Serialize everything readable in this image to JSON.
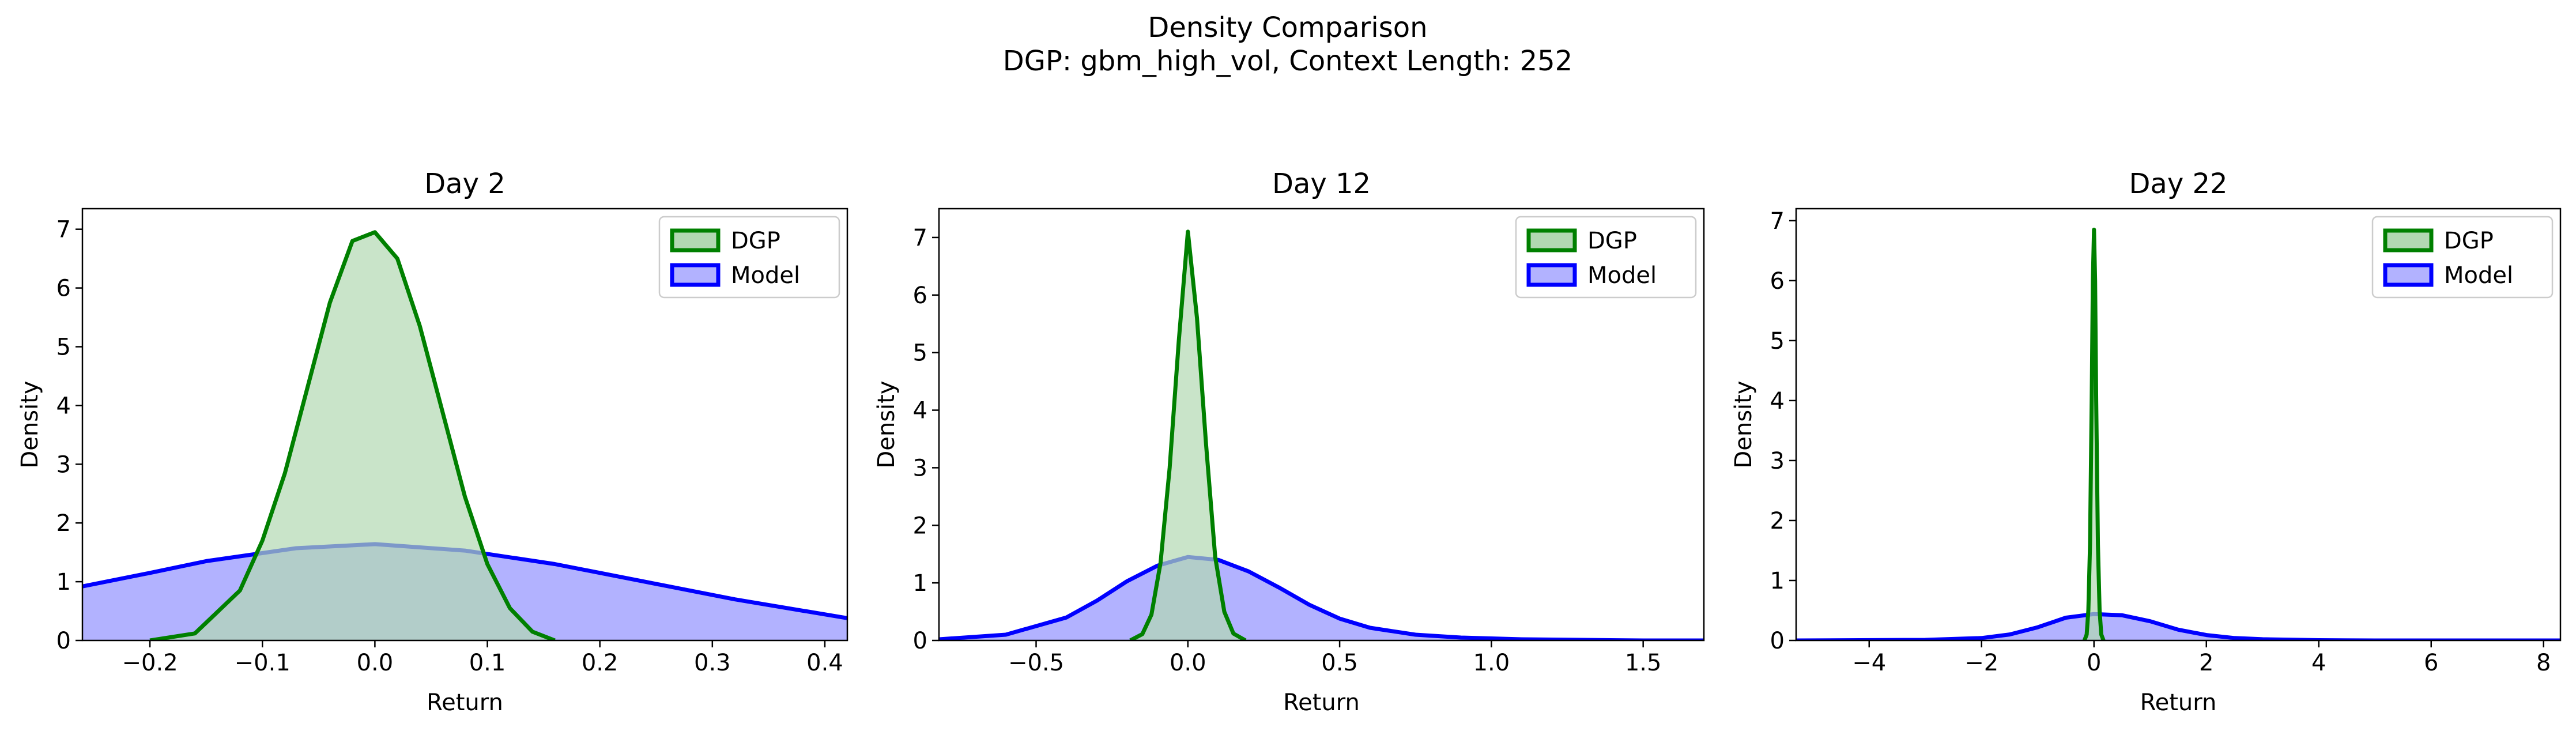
{
  "figure": {
    "title": "Density Comparison",
    "subtitle": "DGP: gbm_high_vol, Context Length: 252"
  },
  "colors": {
    "dgp_line": "#008000",
    "dgp_fill": "#b2d8b2",
    "model_line": "#0000ff",
    "model_fill": "#b2b2ff"
  },
  "chart_data": [
    {
      "type": "area",
      "title": "Day 2",
      "xlabel": "Return",
      "ylabel": "Density",
      "xlim": [
        -0.26,
        0.42
      ],
      "ylim": [
        0,
        7.35
      ],
      "xticks": [
        -0.2,
        -0.1,
        0.0,
        0.1,
        0.2,
        0.3,
        0.4
      ],
      "xtick_labels": [
        "−0.2",
        "−0.1",
        "0.0",
        "0.1",
        "0.2",
        "0.3",
        "0.4"
      ],
      "yticks": [
        0,
        1,
        2,
        3,
        4,
        5,
        6,
        7
      ],
      "ytick_labels": [
        "0",
        "1",
        "2",
        "3",
        "4",
        "5",
        "6",
        "7"
      ],
      "legend": {
        "position": "upper right",
        "entries": [
          "DGP",
          "Model"
        ]
      },
      "series": [
        {
          "name": "DGP",
          "x": [
            -0.2,
            -0.16,
            -0.12,
            -0.1,
            -0.08,
            -0.06,
            -0.04,
            -0.02,
            0.0,
            0.02,
            0.04,
            0.06,
            0.08,
            0.1,
            0.12,
            0.14,
            0.16
          ],
          "y": [
            0.0,
            0.12,
            0.85,
            1.7,
            2.85,
            4.3,
            5.75,
            6.8,
            6.95,
            6.5,
            5.35,
            3.9,
            2.45,
            1.3,
            0.55,
            0.15,
            0.0
          ]
        },
        {
          "name": "Model",
          "x": [
            -0.26,
            -0.2,
            -0.15,
            -0.07,
            0.0,
            0.08,
            0.16,
            0.24,
            0.32,
            0.42
          ],
          "y": [
            0.92,
            1.15,
            1.35,
            1.57,
            1.64,
            1.53,
            1.3,
            1.0,
            0.7,
            0.38
          ]
        }
      ]
    },
    {
      "type": "area",
      "title": "Day 12",
      "xlabel": "Return",
      "ylabel": "Density",
      "xlim": [
        -0.82,
        1.7
      ],
      "ylim": [
        0,
        7.5
      ],
      "xticks": [
        -0.5,
        0.0,
        0.5,
        1.0,
        1.5
      ],
      "xtick_labels": [
        "−0.5",
        "0.0",
        "0.5",
        "1.0",
        "1.5"
      ],
      "yticks": [
        0,
        1,
        2,
        3,
        4,
        5,
        6,
        7
      ],
      "ytick_labels": [
        "0",
        "1",
        "2",
        "3",
        "4",
        "5",
        "6",
        "7"
      ],
      "legend": {
        "position": "upper right",
        "entries": [
          "DGP",
          "Model"
        ]
      },
      "series": [
        {
          "name": "DGP",
          "x": [
            -0.19,
            -0.15,
            -0.12,
            -0.09,
            -0.06,
            -0.03,
            0.0,
            0.03,
            0.06,
            0.09,
            0.12,
            0.15,
            0.19
          ],
          "y": [
            0.0,
            0.11,
            0.45,
            1.35,
            3.0,
            5.2,
            7.1,
            5.6,
            3.4,
            1.45,
            0.5,
            0.12,
            0.0
          ]
        },
        {
          "name": "Model",
          "x": [
            -0.82,
            -0.6,
            -0.4,
            -0.3,
            -0.2,
            -0.1,
            0.0,
            0.1,
            0.2,
            0.3,
            0.4,
            0.5,
            0.6,
            0.75,
            0.9,
            1.1,
            1.3,
            1.5,
            1.7
          ],
          "y": [
            0.02,
            0.1,
            0.4,
            0.69,
            1.03,
            1.3,
            1.45,
            1.4,
            1.2,
            0.92,
            0.62,
            0.38,
            0.22,
            0.1,
            0.05,
            0.02,
            0.01,
            0.0,
            0.0
          ]
        }
      ]
    },
    {
      "type": "area",
      "title": "Day 22",
      "xlabel": "Return",
      "ylabel": "Density",
      "xlim": [
        -5.3,
        8.3
      ],
      "ylim": [
        0,
        7.2
      ],
      "xticks": [
        -4,
        -2,
        0,
        2,
        4,
        6,
        8
      ],
      "xtick_labels": [
        "−4",
        "−2",
        "0",
        "2",
        "4",
        "6",
        "8"
      ],
      "yticks": [
        0,
        1,
        2,
        3,
        4,
        5,
        6,
        7
      ],
      "ytick_labels": [
        "0",
        "1",
        "2",
        "3",
        "4",
        "5",
        "6",
        "7"
      ],
      "legend": {
        "position": "upper right",
        "entries": [
          "DGP",
          "Model"
        ]
      },
      "series": [
        {
          "name": "DGP",
          "x": [
            -0.17,
            -0.13,
            -0.1,
            -0.07,
            -0.04,
            -0.02,
            0.0,
            0.02,
            0.04,
            0.07,
            0.1,
            0.13,
            0.17
          ],
          "y": [
            0.0,
            0.1,
            0.5,
            1.6,
            4.0,
            6.0,
            6.85,
            6.0,
            4.0,
            1.6,
            0.5,
            0.1,
            0.0
          ]
        },
        {
          "name": "Model",
          "x": [
            -5.3,
            -3.0,
            -2.0,
            -1.5,
            -1.0,
            -0.5,
            0.0,
            0.5,
            1.0,
            1.5,
            2.0,
            2.5,
            3.0,
            4.0,
            5.0,
            6.0,
            8.3
          ],
          "y": [
            0.0,
            0.01,
            0.04,
            0.1,
            0.22,
            0.38,
            0.44,
            0.42,
            0.32,
            0.18,
            0.09,
            0.04,
            0.02,
            0.005,
            0.0,
            0.0,
            0.0
          ]
        }
      ]
    }
  ]
}
